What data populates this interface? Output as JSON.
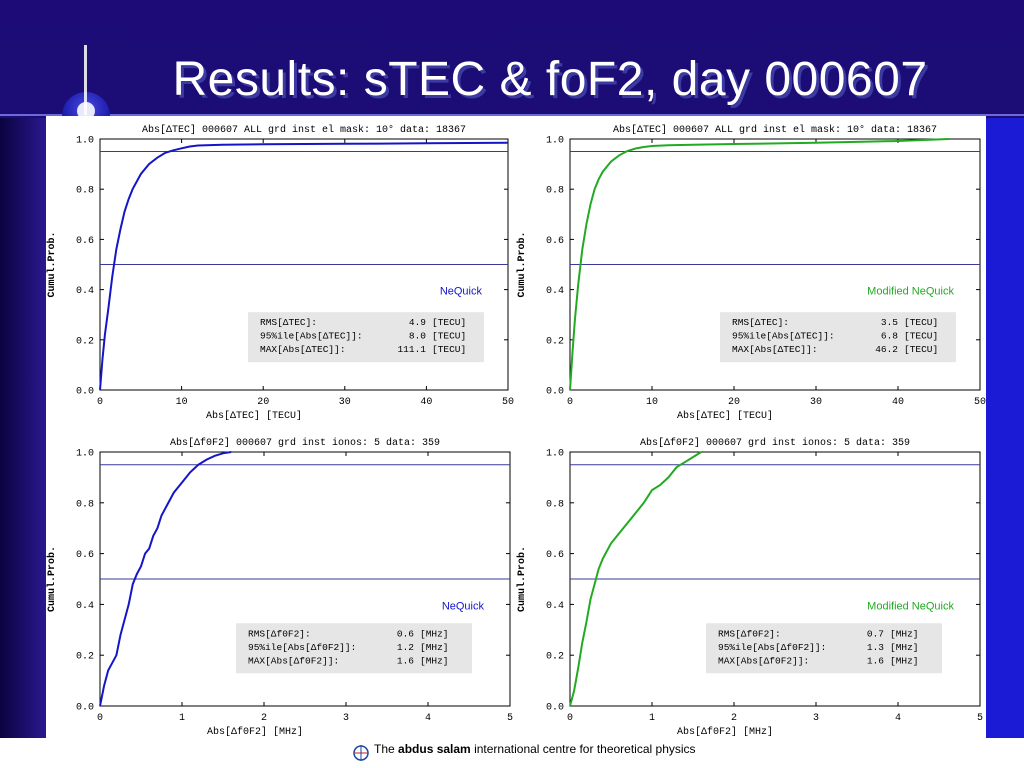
{
  "slide": {
    "title": "Results: sTEC & foF2, day 000607",
    "footer": {
      "prefix": "The",
      "bold": "abdus salam",
      "suffix": "international centre for  theoretical  physics"
    }
  },
  "colors": {
    "nequick": "#1515c8",
    "modified": "#22aa22",
    "refline": "#3a3a9a",
    "statsbox": "#e6e6e6"
  },
  "chart_data": [
    {
      "type": "line",
      "title": "Abs[ΔTEC] 000607  ALL    grd inst    el mask: 10°    data: 18367",
      "xlabel": "Abs[ΔTEC] [TECU]",
      "ylabel": "Cumul.Prob.",
      "xlim": [
        0,
        50
      ],
      "ylim": [
        0,
        1
      ],
      "xticks": [
        "0",
        "10",
        "20",
        "30",
        "40",
        "50"
      ],
      "yticks": [
        "0.0",
        "0.2",
        "0.4",
        "0.6",
        "0.8",
        "1.0"
      ],
      "reflines": [
        0.5,
        0.95
      ],
      "legend": "NeQuick",
      "stats": [
        "RMS[ΔTEC]:",
        "4.9",
        "[TECU]",
        "95%ile[Abs[ΔTEC]]:",
        "8.0",
        "[TECU]",
        "MAX[Abs[ΔTEC]]:",
        "111.1",
        "[TECU]"
      ],
      "color_key": "nequick",
      "x": [
        0,
        0.3,
        0.6,
        1,
        1.5,
        2,
        2.5,
        3,
        3.5,
        4,
        5,
        6,
        7,
        8,
        9,
        10,
        11,
        12,
        15,
        20,
        30,
        40,
        50
      ],
      "y": [
        0,
        0.12,
        0.22,
        0.32,
        0.45,
        0.56,
        0.64,
        0.71,
        0.76,
        0.8,
        0.86,
        0.9,
        0.925,
        0.945,
        0.955,
        0.963,
        0.97,
        0.974,
        0.977,
        0.979,
        0.981,
        0.983,
        0.985
      ]
    },
    {
      "type": "line",
      "title": "Abs[ΔTEC] 000607  ALL    grd inst    el mask: 10°    data: 18367",
      "xlabel": "Abs[ΔTEC] [TECU]",
      "ylabel": "Cumul.Prob.",
      "xlim": [
        0,
        50
      ],
      "ylim": [
        0,
        1
      ],
      "xticks": [
        "0",
        "10",
        "20",
        "30",
        "40",
        "50"
      ],
      "yticks": [
        "0.0",
        "0.2",
        "0.4",
        "0.6",
        "0.8",
        "1.0"
      ],
      "reflines": [
        0.5,
        0.95
      ],
      "legend": "Modified NeQuick",
      "stats": [
        "RMS[ΔTEC]:",
        "3.5",
        "[TECU]",
        "95%ile[Abs[ΔTEC]]:",
        "6.8",
        "[TECU]",
        "MAX[Abs[ΔTEC]]:",
        "46.2",
        "[TECU]"
      ],
      "color_key": "modified",
      "x": [
        0,
        0.3,
        0.6,
        1,
        1.5,
        2,
        2.5,
        3,
        3.5,
        4,
        5,
        6,
        7,
        8,
        9,
        10,
        12,
        15,
        20,
        30,
        40,
        46.2
      ],
      "y": [
        0,
        0.15,
        0.28,
        0.42,
        0.56,
        0.66,
        0.74,
        0.8,
        0.84,
        0.87,
        0.91,
        0.935,
        0.952,
        0.962,
        0.968,
        0.972,
        0.975,
        0.977,
        0.98,
        0.985,
        0.992,
        1.0
      ]
    },
    {
      "type": "line",
      "title": "Abs[Δf0F2] 000607    grd inst    ionos: 5    data: 359",
      "xlabel": "Abs[Δf0F2] [MHz]",
      "ylabel": "Cumul.Prob.",
      "xlim": [
        0,
        5
      ],
      "ylim": [
        0,
        1
      ],
      "xticks": [
        "0",
        "1",
        "2",
        "3",
        "4",
        "5"
      ],
      "yticks": [
        "0.0",
        "0.2",
        "0.4",
        "0.6",
        "0.8",
        "1.0"
      ],
      "reflines": [
        0.5,
        0.95
      ],
      "legend": "NeQuick",
      "stats": [
        "RMS[Δf0F2]:",
        "0.6",
        "[MHz]",
        "95%ile[Abs[Δf0F2]]:",
        "1.2",
        "[MHz]",
        "MAX[Abs[Δf0F2]]:",
        "1.6",
        "[MHz]"
      ],
      "color_key": "nequick",
      "x": [
        0,
        0.05,
        0.1,
        0.15,
        0.2,
        0.25,
        0.3,
        0.35,
        0.4,
        0.45,
        0.5,
        0.55,
        0.6,
        0.65,
        0.7,
        0.75,
        0.8,
        0.9,
        1.0,
        1.1,
        1.2,
        1.3,
        1.4,
        1.5,
        1.6
      ],
      "y": [
        0,
        0.08,
        0.14,
        0.17,
        0.2,
        0.28,
        0.34,
        0.4,
        0.48,
        0.52,
        0.55,
        0.6,
        0.62,
        0.67,
        0.7,
        0.75,
        0.78,
        0.84,
        0.88,
        0.92,
        0.95,
        0.97,
        0.985,
        0.995,
        1.0
      ]
    },
    {
      "type": "line",
      "title": "Abs[Δf0F2] 000607    grd inst    ionos: 5    data: 359",
      "xlabel": "Abs[Δf0F2] [MHz]",
      "ylabel": "Cumul.Prob.",
      "xlim": [
        0,
        5
      ],
      "ylim": [
        0,
        1
      ],
      "xticks": [
        "0",
        "1",
        "2",
        "3",
        "4",
        "5"
      ],
      "yticks": [
        "0.0",
        "0.2",
        "0.4",
        "0.6",
        "0.8",
        "1.0"
      ],
      "reflines": [
        0.5,
        0.95
      ],
      "legend": "Modified NeQuick",
      "stats": [
        "RMS[Δf0F2]:",
        "0.7",
        "[MHz]",
        "95%ile[Abs[Δf0F2]]:",
        "1.3",
        "[MHz]",
        "MAX[Abs[Δf0F2]]:",
        "1.6",
        "[MHz]"
      ],
      "color_key": "modified",
      "x": [
        0,
        0.05,
        0.1,
        0.15,
        0.2,
        0.25,
        0.3,
        0.35,
        0.4,
        0.5,
        0.6,
        0.7,
        0.8,
        0.9,
        1.0,
        1.1,
        1.2,
        1.3,
        1.4,
        1.5,
        1.6
      ],
      "y": [
        0,
        0.06,
        0.15,
        0.25,
        0.33,
        0.42,
        0.48,
        0.54,
        0.58,
        0.64,
        0.68,
        0.72,
        0.76,
        0.8,
        0.85,
        0.87,
        0.9,
        0.94,
        0.96,
        0.98,
        1.0
      ]
    }
  ]
}
